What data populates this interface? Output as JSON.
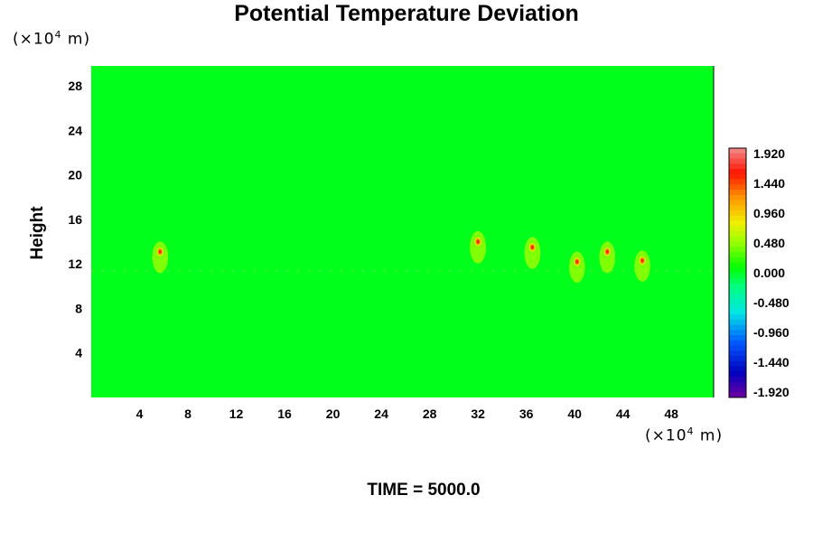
{
  "chart_data": {
    "type": "heatmap",
    "title": "Potential Temperature Deviation",
    "ylabel": "Height",
    "y_unit": {
      "prefix": "(×10",
      "exp": "4",
      "suffix": " m)"
    },
    "x_unit": {
      "prefix": "(×10",
      "exp": "4",
      "suffix": " m)"
    },
    "footer": "TIME = 5000.0",
    "xlim": [
      0,
      51.5
    ],
    "ylim": [
      0,
      29.8
    ],
    "x_ticks": [
      4,
      8,
      12,
      16,
      20,
      24,
      28,
      32,
      36,
      40,
      44,
      48
    ],
    "y_ticks": [
      4,
      8,
      12,
      16,
      20,
      24,
      28
    ],
    "background_value": 0.0,
    "colorbar": {
      "min": -1.92,
      "max": 1.92,
      "labels": [
        "1.920",
        "1.440",
        "0.960",
        "0.480",
        "0.000",
        "-0.480",
        "-0.960",
        "-1.440",
        "-1.920"
      ]
    },
    "features": [
      {
        "x": 5.7,
        "y": 13.1,
        "value": 1.7
      },
      {
        "x": 32.0,
        "y": 14.0,
        "value": 1.9
      },
      {
        "x": 36.5,
        "y": 13.5,
        "value": 1.8
      },
      {
        "x": 40.2,
        "y": 12.2,
        "value": 1.6
      },
      {
        "x": 42.7,
        "y": 13.1,
        "value": 1.7
      },
      {
        "x": 45.6,
        "y": 12.3,
        "value": 1.6
      }
    ]
  }
}
